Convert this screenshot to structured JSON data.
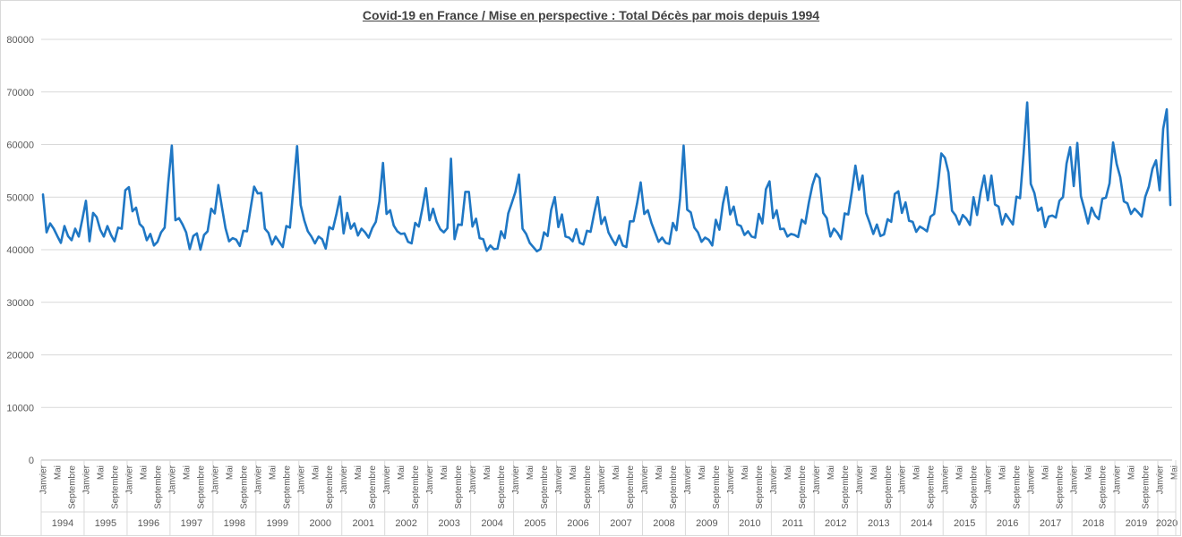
{
  "chart_data": {
    "type": "line",
    "title": "Covid-19 en France / Mise en perspective : Total Décès par mois depuis 1994",
    "xlabel": "",
    "ylabel": "",
    "ylim": [
      0,
      80000
    ],
    "yticks": [
      0,
      10000,
      20000,
      30000,
      40000,
      50000,
      60000,
      70000,
      80000
    ],
    "grid": true,
    "legend": "none",
    "month_tick_labels": [
      "Janvier",
      "Mai",
      "Septembre"
    ],
    "years": [
      "1994",
      "1995",
      "1996",
      "1997",
      "1998",
      "1999",
      "2000",
      "2001",
      "2002",
      "2003",
      "2004",
      "2005",
      "2006",
      "2007",
      "2008",
      "2009",
      "2010",
      "2011",
      "2012",
      "2013",
      "2014",
      "2015",
      "2016",
      "2017",
      "2018",
      "2019",
      "2020"
    ],
    "last_year_months": 5,
    "line_color": "#1f77c4",
    "series": [
      {
        "values": [
          50500,
          43300,
          45000,
          44000,
          42600,
          41300,
          44500,
          42600,
          41800,
          44000,
          42500,
          45800,
          49300,
          41600,
          47000,
          46200,
          43800,
          42500,
          44500,
          42800,
          41600,
          44200,
          44000,
          51300,
          51900,
          47300,
          48000,
          44900,
          44200,
          41800,
          43000,
          40800,
          41500,
          43300,
          44200,
          52700,
          59800,
          45600,
          46000,
          44800,
          43300,
          40100,
          42600,
          43100,
          40000,
          42800,
          43500,
          47800,
          46900,
          52300,
          48100,
          44100,
          41600,
          42200,
          41900,
          40700,
          43600,
          43500,
          47800,
          52000,
          50700,
          50800,
          44000,
          43200,
          41000,
          42500,
          41500,
          40500,
          44500,
          44200,
          52000,
          59700,
          48500,
          45600,
          43500,
          42500,
          41200,
          42500,
          42000,
          40200,
          44300,
          43900,
          46800,
          50100,
          43100,
          47000,
          44000,
          45000,
          42700,
          44000,
          43300,
          42300,
          44100,
          45300,
          49200,
          56500,
          46800,
          47500,
          44600,
          43500,
          43000,
          43100,
          41500,
          41200,
          45100,
          44400,
          47800,
          51700,
          45600,
          47800,
          45300,
          43900,
          43300,
          44100,
          57300,
          42000,
          44800,
          44700,
          51000,
          51000,
          44400,
          45900,
          42200,
          42000,
          39800,
          40800,
          40100,
          40200,
          43500,
          42200,
          46900,
          48900,
          51000,
          54300,
          44000,
          43000,
          41300,
          40500,
          39700,
          40100,
          43300,
          42600,
          47600,
          50000,
          44300,
          46700,
          42500,
          42300,
          41600,
          43900,
          41300,
          41000,
          43600,
          43400,
          46900,
          50000,
          44900,
          46200,
          43300,
          42000,
          40900,
          42700,
          40800,
          40500,
          45400,
          45400,
          48800,
          52800,
          46800,
          47500,
          45100,
          43300,
          41500,
          42300,
          41300,
          41100,
          45100,
          43700,
          49700,
          59800,
          47600,
          47100,
          44200,
          43300,
          41500,
          42300,
          41900,
          40800,
          45700,
          43800,
          48800,
          51900,
          46700,
          48200,
          44800,
          44500,
          42800,
          43500,
          42500,
          42300,
          46800,
          45000,
          51500,
          53000,
          46000,
          47500,
          43900,
          44000,
          42500,
          43000,
          42800,
          42400,
          45700,
          45000,
          49000,
          52300,
          54400,
          53600,
          47000,
          46000,
          42500,
          44000,
          43200,
          42000,
          46900,
          46700,
          51000,
          56000,
          51400,
          54100,
          47000,
          45100,
          43000,
          44800,
          42600,
          42900,
          45800,
          45300,
          50600,
          51100,
          47000,
          49000,
          45500,
          45300,
          43400,
          44400,
          44000,
          43500,
          46300,
          46800,
          51900,
          58300,
          57500,
          54700,
          47400,
          46500,
          44800,
          46600,
          45900,
          44700,
          50000,
          46600,
          51000,
          54100,
          49400,
          54100,
          48600,
          48200,
          44800,
          46800,
          45800,
          44800,
          50100,
          49800,
          58300,
          68000,
          52500,
          50800,
          47400,
          48000,
          44300,
          46300,
          46500,
          46100,
          49300,
          50000,
          56400,
          59500,
          52100,
          60300,
          50200,
          47700,
          45000,
          48000,
          46500,
          45800,
          49700,
          49900,
          52600,
          60400,
          56300,
          53800,
          49200,
          48800,
          46800,
          47800,
          47100,
          46300,
          50100,
          52000,
          55400,
          57000,
          51300,
          63000,
          66700,
          48500
        ]
      }
    ]
  }
}
